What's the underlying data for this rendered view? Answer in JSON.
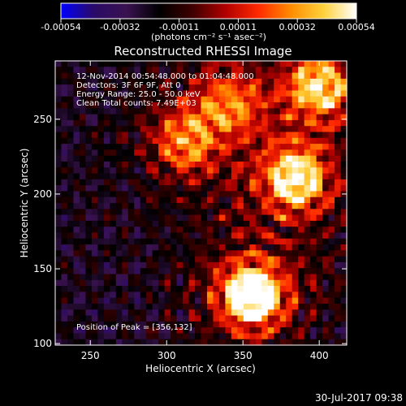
{
  "chart_data": {
    "type": "heatmap",
    "title": "Reconstructed RHESSI Image",
    "xlabel": "Heliocentric X (arcsec)",
    "ylabel": "Heliocentric Y (arcsec)",
    "xlim": [
      227,
      418
    ],
    "ylim": [
      99,
      289
    ],
    "x_ticks": [
      "250",
      "300",
      "350",
      "400"
    ],
    "y_ticks": [
      "100",
      "150",
      "200",
      "250"
    ],
    "colorbar": {
      "range": [
        -0.00054,
        0.00054
      ],
      "ticks": [
        "-0.00054",
        "-0.00032",
        "-0.00011",
        "0.00011",
        "0.00032",
        "0.00054"
      ],
      "units_label": "(photons cm⁻² s⁻¹ asec⁻²)",
      "colors": [
        "#0000ff",
        "#2a0a68",
        "#3a1250",
        "#000000",
        "#3d0000",
        "#b00000",
        "#ff2800",
        "#ff8c00",
        "#ffd23c",
        "#ffffff"
      ]
    },
    "annotations": [
      "12-Nov-2014 00:54:48.000 to 01:04:48.000",
      "Detectors: 3F 6F 9F, Att 0",
      "Energy Range: 25.0 - 50.0 keV",
      "Clean     Total counts: 7.49E+03"
    ],
    "peak_label": "Position of Peak = [356,132]",
    "peak_position": [
      356,
      132
    ],
    "sources": [
      {
        "x": 356,
        "y": 132,
        "intensity": 1.0
      },
      {
        "x": 385,
        "y": 210,
        "intensity": 0.78
      },
      {
        "x": 400,
        "y": 272,
        "intensity": 0.7
      },
      {
        "x": 312,
        "y": 235,
        "intensity": 0.5
      },
      {
        "x": 340,
        "y": 260,
        "intensity": 0.45
      }
    ]
  },
  "footer": {
    "timestamp": "30-Jul-2017 09:38"
  }
}
